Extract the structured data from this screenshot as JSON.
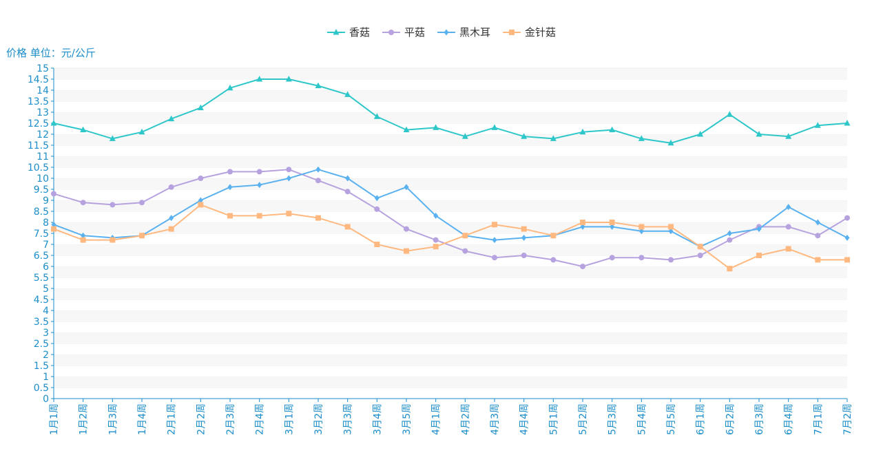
{
  "chart_data": {
    "type": "line",
    "ylabel": "价格 单位：元/公斤",
    "ylim": [
      0,
      15
    ],
    "y_ticks": [
      "0",
      "0.5",
      "1",
      "1.5",
      "2",
      "2.5",
      "3",
      "3.5",
      "4",
      "4.5",
      "5",
      "5.5",
      "6",
      "6.5",
      "7",
      "7.5",
      "8",
      "8.5",
      "9",
      "9.5",
      "10",
      "10.5",
      "11",
      "11.5",
      "12",
      "12.5",
      "13",
      "13.5",
      "14",
      "14.5",
      "15"
    ],
    "grid": true,
    "legend": "top-center",
    "categories": [
      "1月1周",
      "1月2周",
      "1月3周",
      "1月4周",
      "2月1周",
      "2月2周",
      "2月3周",
      "2月4周",
      "3月1周",
      "3月2周",
      "3月3周",
      "3月4周",
      "3月5周",
      "4月1周",
      "4月2周",
      "4月3周",
      "4月4周",
      "5月1周",
      "5月2周",
      "5月3周",
      "5月4周",
      "5月5周",
      "6月1周",
      "6月2周",
      "6月3周",
      "6月4周",
      "7月1周",
      "7月2周"
    ],
    "series": [
      {
        "name": "香菇",
        "color": "#2ec7c9",
        "marker": "triangle",
        "values": [
          12.5,
          12.2,
          11.8,
          12.1,
          12.7,
          13.2,
          14.1,
          14.5,
          14.5,
          14.2,
          13.8,
          12.8,
          12.2,
          12.3,
          11.9,
          12.3,
          11.9,
          11.8,
          12.1,
          12.2,
          11.8,
          11.6,
          12.0,
          12.9,
          12.0,
          11.9,
          12.4,
          12.5
        ]
      },
      {
        "name": "平菇",
        "color": "#b6a2de",
        "marker": "circle",
        "values": [
          9.3,
          8.9,
          8.8,
          8.9,
          9.6,
          10.0,
          10.3,
          10.3,
          10.4,
          9.9,
          9.4,
          8.6,
          7.7,
          7.2,
          6.7,
          6.4,
          6.5,
          6.3,
          6.0,
          6.4,
          6.4,
          6.3,
          6.5,
          7.2,
          7.8,
          7.8,
          7.4,
          8.2
        ]
      },
      {
        "name": "黑木耳",
        "color": "#5ab1ef",
        "marker": "diamond",
        "values": [
          7.9,
          7.4,
          7.3,
          7.4,
          8.2,
          9.0,
          9.6,
          9.7,
          10.0,
          10.4,
          10.0,
          9.1,
          9.6,
          8.3,
          7.4,
          7.2,
          7.3,
          7.4,
          7.8,
          7.8,
          7.6,
          7.6,
          6.9,
          7.5,
          7.7,
          8.7,
          8.0,
          7.3
        ]
      },
      {
        "name": "金针菇",
        "color": "#ffb980",
        "marker": "square",
        "values": [
          7.7,
          7.2,
          7.2,
          7.4,
          7.7,
          8.8,
          8.3,
          8.3,
          8.4,
          8.2,
          7.8,
          7.0,
          6.7,
          6.9,
          7.4,
          7.9,
          7.7,
          7.4,
          8.0,
          8.0,
          7.8,
          7.8,
          6.9,
          5.9,
          6.5,
          6.8,
          6.3,
          6.3
        ]
      }
    ]
  }
}
